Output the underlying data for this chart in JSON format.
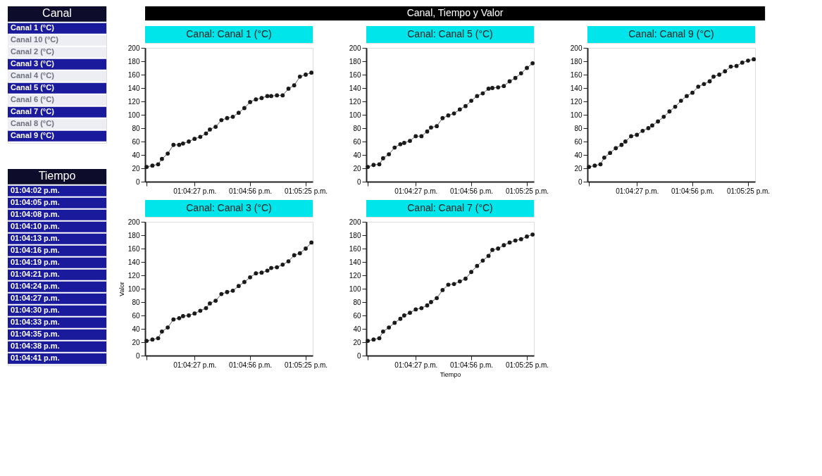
{
  "chart_data": [
    {
      "type": "other",
      "title": "Canal",
      "categories": [
        "Canal 1 (°C)",
        "Canal 10 (°C)",
        "Canal 2 (°C)",
        "Canal 3 (°C)",
        "Canal 4 (°C)",
        "Canal 5 (°C)",
        "Canal 6 (°C)",
        "Canal 7 (°C)",
        "Canal 8 (°C)",
        "Canal 9 (°C)"
      ],
      "colors": [
        "#1a1a9c",
        "#eceef3",
        "#eceef3",
        "#1a1a9c",
        "#eceef3",
        "#1a1a9c",
        "#eceef3",
        "#1a1a9c",
        "#eceef3",
        "#1a1a9c"
      ]
    },
    {
      "type": "other",
      "title": "Tiempo",
      "categories": [
        "01:04:02 p.m.",
        "01:04:05 p.m.",
        "01:04:08 p.m.",
        "01:04:10 p.m.",
        "01:04:13 p.m.",
        "01:04:16 p.m.",
        "01:04:19 p.m.",
        "01:04:21 p.m.",
        "01:04:24 p.m.",
        "01:04:27 p.m.",
        "01:04:30 p.m.",
        "01:04:33 p.m.",
        "01:04:35 p.m.",
        "01:04:38 p.m.",
        "01:04:41 p.m."
      ],
      "colors": [
        "#1a1a9c",
        "#1a1a9c",
        "#1a1a9c",
        "#1a1a9c",
        "#1a1a9c",
        "#1a1a9c",
        "#1a1a9c",
        "#1a1a9c",
        "#1a1a9c",
        "#1a1a9c",
        "#1a1a9c",
        "#1a1a9c",
        "#1a1a9c",
        "#1a1a9c",
        "#1a1a9c"
      ]
    },
    {
      "type": "other",
      "title": "Canal, Tiempo y Valor"
    },
    {
      "type": "line",
      "title": "Canal: Canal 1 (°C)",
      "x": [
        13.06722,
        13.06806,
        13.06889,
        13.06944,
        13.07028,
        13.07111,
        13.07194,
        13.0725,
        13.07333,
        13.07417,
        13.075,
        13.07583,
        13.07639,
        13.07722,
        13.07806,
        13.07889,
        13.07972,
        13.08056,
        13.08139,
        13.08222,
        13.08306,
        13.08389,
        13.08472,
        13.08528,
        13.08611,
        13.08694,
        13.08778,
        13.08861,
        13.08944,
        13.09028,
        13.09111
      ],
      "series": [
        {
          "color": "#1a1a1a",
          "values": [
            22,
            24,
            26,
            34,
            42,
            55,
            55,
            57,
            60,
            64,
            67,
            72,
            78,
            82,
            92,
            95,
            97,
            103,
            110,
            119,
            123,
            125,
            128,
            128,
            129,
            129,
            139,
            144,
            157,
            160,
            163
          ]
        }
      ],
      "xlim": [
        13.067,
        13.0913
      ],
      "xticks": [
        {
          "value": 13.06722,
          "label": null
        },
        {
          "value": 13.07417,
          "label": "01:04:27 p.m."
        },
        {
          "value": 13.08222,
          "label": "01:04:56 p.m."
        },
        {
          "value": 13.09028,
          "label": "01:05:25 p.m."
        }
      ],
      "ylim": [
        0,
        200
      ],
      "yticks": [
        0,
        20,
        40,
        60,
        80,
        100,
        120,
        140,
        160,
        180,
        200
      ],
      "marker": "circle",
      "line_style": "solid"
    },
    {
      "type": "line",
      "title": "Canal: Canal 5 (°C)",
      "x": [
        13.06722,
        13.06806,
        13.06889,
        13.06944,
        13.07028,
        13.07111,
        13.07194,
        13.0725,
        13.07333,
        13.07417,
        13.075,
        13.07583,
        13.07639,
        13.07722,
        13.07806,
        13.07889,
        13.07972,
        13.08056,
        13.08139,
        13.08222,
        13.08306,
        13.08389,
        13.08472,
        13.08528,
        13.08611,
        13.08694,
        13.08778,
        13.08861,
        13.08944,
        13.09028,
        13.09111
      ],
      "series": [
        {
          "color": "#1a1a1a",
          "values": [
            22,
            25,
            26,
            35,
            41,
            51,
            56,
            58,
            61,
            68,
            68,
            75,
            81,
            83,
            95,
            99,
            102,
            108,
            113,
            121,
            128,
            132,
            139,
            140,
            141,
            143,
            150,
            155,
            162,
            170,
            177
          ]
        }
      ],
      "xlim": [
        13.067,
        13.0913
      ],
      "xticks": [
        {
          "value": 13.06722,
          "label": null
        },
        {
          "value": 13.07417,
          "label": "01:04:27 p.m."
        },
        {
          "value": 13.08222,
          "label": "01:04:56 p.m."
        },
        {
          "value": 13.09028,
          "label": "01:05:25 p.m."
        }
      ],
      "ylim": [
        0,
        200
      ],
      "yticks": [
        0,
        20,
        40,
        60,
        80,
        100,
        120,
        140,
        160,
        180,
        200
      ],
      "marker": "circle",
      "line_style": "solid"
    },
    {
      "type": "line",
      "title": "Canal: Canal 9 (°C)",
      "x": [
        13.06722,
        13.06806,
        13.06889,
        13.06944,
        13.07028,
        13.07111,
        13.07194,
        13.0725,
        13.07333,
        13.07417,
        13.075,
        13.07583,
        13.07639,
        13.07722,
        13.07806,
        13.07889,
        13.07972,
        13.08056,
        13.08139,
        13.08222,
        13.08306,
        13.08389,
        13.08472,
        13.08528,
        13.08611,
        13.08694,
        13.08778,
        13.08861,
        13.08944,
        13.09028,
        13.09111
      ],
      "series": [
        {
          "color": "#1a1a1a",
          "values": [
            22,
            24,
            26,
            36,
            43,
            50,
            55,
            60,
            68,
            70,
            76,
            80,
            84,
            90,
            97,
            105,
            112,
            121,
            128,
            133,
            142,
            146,
            150,
            157,
            160,
            165,
            172,
            173,
            178,
            181,
            183
          ]
        }
      ],
      "xlim": [
        13.067,
        13.0913
      ],
      "xticks": [
        {
          "value": 13.06722,
          "label": null
        },
        {
          "value": 13.07417,
          "label": "01:04:27 p.m."
        },
        {
          "value": 13.08222,
          "label": "01:04:56 p.m."
        },
        {
          "value": 13.09028,
          "label": "01:05:25 p.m."
        }
      ],
      "ylim": [
        0,
        200
      ],
      "yticks": [
        0,
        20,
        40,
        60,
        80,
        100,
        120,
        140,
        160,
        180,
        200
      ],
      "marker": "circle",
      "line_style": "solid"
    },
    {
      "type": "line",
      "title": "Canal: Canal 3 (°C)",
      "ylabel": "Valor",
      "x": [
        13.06722,
        13.06806,
        13.06889,
        13.06944,
        13.07028,
        13.07111,
        13.07194,
        13.0725,
        13.07333,
        13.07417,
        13.075,
        13.07583,
        13.07639,
        13.07722,
        13.07806,
        13.07889,
        13.07972,
        13.08056,
        13.08139,
        13.08222,
        13.08306,
        13.08389,
        13.08472,
        13.08528,
        13.08611,
        13.08694,
        13.08778,
        13.08861,
        13.08944,
        13.09028,
        13.09111
      ],
      "series": [
        {
          "color": "#1a1a1a",
          "values": [
            22,
            24,
            26,
            36,
            42,
            54,
            56,
            59,
            60,
            63,
            67,
            71,
            78,
            82,
            92,
            95,
            97,
            104,
            110,
            117,
            123,
            124,
            127,
            131,
            132,
            136,
            141,
            150,
            153,
            160,
            169
          ]
        }
      ],
      "xlim": [
        13.067,
        13.0913
      ],
      "xticks": [
        {
          "value": 13.06722,
          "label": null
        },
        {
          "value": 13.07417,
          "label": "01:04:27 p.m."
        },
        {
          "value": 13.08222,
          "label": "01:04:56 p.m."
        },
        {
          "value": 13.09028,
          "label": "01:05:25 p.m."
        }
      ],
      "ylim": [
        0,
        200
      ],
      "yticks": [
        0,
        20,
        40,
        60,
        80,
        100,
        120,
        140,
        160,
        180,
        200
      ],
      "marker": "circle",
      "line_style": "solid"
    },
    {
      "type": "line",
      "title": "Canal: Canal 7 (°C)",
      "xlabel": "Tiempo",
      "x": [
        13.06722,
        13.06806,
        13.06889,
        13.06944,
        13.07028,
        13.07111,
        13.07194,
        13.0725,
        13.07333,
        13.07417,
        13.075,
        13.07583,
        13.07639,
        13.07722,
        13.07806,
        13.07889,
        13.07972,
        13.08056,
        13.08139,
        13.08222,
        13.08306,
        13.08389,
        13.08472,
        13.08528,
        13.08611,
        13.08694,
        13.08778,
        13.08861,
        13.08944,
        13.09028,
        13.09111
      ],
      "series": [
        {
          "color": "#1a1a1a",
          "values": [
            22,
            24,
            26,
            36,
            42,
            49,
            55,
            60,
            64,
            69,
            71,
            75,
            80,
            86,
            98,
            106,
            107,
            111,
            115,
            125,
            134,
            142,
            149,
            158,
            160,
            165,
            169,
            172,
            174,
            178,
            181
          ]
        }
      ],
      "xlim": [
        13.067,
        13.0913
      ],
      "xticks": [
        {
          "value": 13.06722,
          "label": null
        },
        {
          "value": 13.07417,
          "label": "01:04:27 p.m."
        },
        {
          "value": 13.08222,
          "label": "01:04:56 p.m."
        },
        {
          "value": 13.09028,
          "label": "01:05:25 p.m."
        }
      ],
      "ylim": [
        0,
        200
      ],
      "yticks": [
        0,
        20,
        40,
        60,
        80,
        100,
        120,
        140,
        160,
        180,
        200
      ],
      "marker": "circle",
      "line_style": "solid"
    }
  ]
}
